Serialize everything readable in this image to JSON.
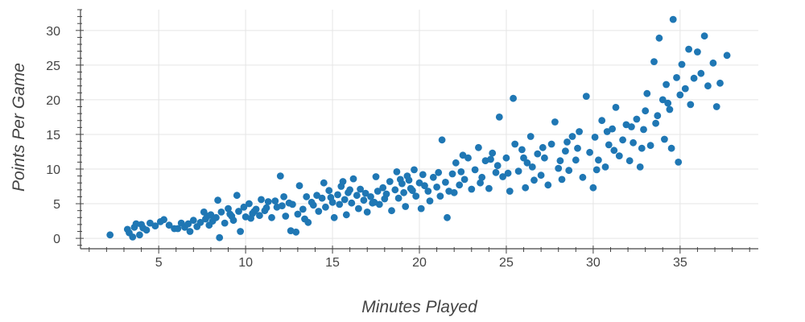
{
  "chart_data": {
    "type": "scatter",
    "title": "",
    "xlabel": "Minutes Played",
    "ylabel": "Points Per Game",
    "xlim": [
      0.5,
      39.5
    ],
    "ylim": [
      -1.5,
      33
    ],
    "xticks": [
      5,
      10,
      15,
      20,
      25,
      30,
      35
    ],
    "yticks": [
      0,
      5,
      10,
      15,
      20,
      25,
      30
    ],
    "grid": true,
    "legend": "none",
    "colors": {
      "marker": "#1f77b4",
      "grid": "#e5e5e5",
      "axis": "#444444"
    },
    "series": [
      {
        "points": [
          [
            2.2,
            0.5
          ],
          [
            3.2,
            1.3
          ],
          [
            3.3,
            0.8
          ],
          [
            3.5,
            0.2
          ],
          [
            3.6,
            1.6
          ],
          [
            3.7,
            2.1
          ],
          [
            3.9,
            0.5
          ],
          [
            4.1,
            1.5
          ],
          [
            4.3,
            1.2
          ],
          [
            4.5,
            2.2
          ],
          [
            4.8,
            1.8
          ],
          [
            5.1,
            2.4
          ],
          [
            5.3,
            2.7
          ],
          [
            5.6,
            1.9
          ],
          [
            5.9,
            1.4
          ],
          [
            6.3,
            2.2
          ],
          [
            6.5,
            1.6
          ],
          [
            6.7,
            2.1
          ],
          [
            6.8,
            1.0
          ],
          [
            7.0,
            2.6
          ],
          [
            7.2,
            1.7
          ],
          [
            7.4,
            2.3
          ],
          [
            7.6,
            3.8
          ],
          [
            7.7,
            2.8
          ],
          [
            7.9,
            1.9
          ],
          [
            8.0,
            3.4
          ],
          [
            8.1,
            2.5
          ],
          [
            8.3,
            3.0
          ],
          [
            8.4,
            5.5
          ],
          [
            8.5,
            0.1
          ],
          [
            8.6,
            3.8
          ],
          [
            8.8,
            2.2
          ],
          [
            9.0,
            4.3
          ],
          [
            9.1,
            3.5
          ],
          [
            9.3,
            2.6
          ],
          [
            9.5,
            6.2
          ],
          [
            9.6,
            3.9
          ],
          [
            9.7,
            1.0
          ],
          [
            9.9,
            4.5
          ],
          [
            10.0,
            3.1
          ],
          [
            10.2,
            5.0
          ],
          [
            10.3,
            2.9
          ],
          [
            10.4,
            3.6
          ],
          [
            10.6,
            4.2
          ],
          [
            10.8,
            3.3
          ],
          [
            10.9,
            5.6
          ],
          [
            11.1,
            4.0
          ],
          [
            11.3,
            5.3
          ],
          [
            11.5,
            3.0
          ],
          [
            11.7,
            5.4
          ],
          [
            11.8,
            4.5
          ],
          [
            12.0,
            9.0
          ],
          [
            12.1,
            4.7
          ],
          [
            12.3,
            3.2
          ],
          [
            12.5,
            5.1
          ],
          [
            12.6,
            1.1
          ],
          [
            12.7,
            4.9
          ],
          [
            12.9,
            0.9
          ],
          [
            13.0,
            3.5
          ],
          [
            13.1,
            7.6
          ],
          [
            13.3,
            4.2
          ],
          [
            13.5,
            6.0
          ],
          [
            13.6,
            2.3
          ],
          [
            13.8,
            5.2
          ],
          [
            13.9,
            4.8
          ],
          [
            14.1,
            6.2
          ],
          [
            14.2,
            3.9
          ],
          [
            14.4,
            5.8
          ],
          [
            14.5,
            8.0
          ],
          [
            14.6,
            4.5
          ],
          [
            14.8,
            6.9
          ],
          [
            15.0,
            5.2
          ],
          [
            15.1,
            3.0
          ],
          [
            15.3,
            6.3
          ],
          [
            15.4,
            4.9
          ],
          [
            15.5,
            7.5
          ],
          [
            15.7,
            5.6
          ],
          [
            15.8,
            3.4
          ],
          [
            15.9,
            6.6
          ],
          [
            16.1,
            5.1
          ],
          [
            16.2,
            8.6
          ],
          [
            16.4,
            6.2
          ],
          [
            16.5,
            4.3
          ],
          [
            16.6,
            7.1
          ],
          [
            16.8,
            5.5
          ],
          [
            16.9,
            6.5
          ],
          [
            17.0,
            3.8
          ],
          [
            17.2,
            6.0
          ],
          [
            17.3,
            5.1
          ],
          [
            17.5,
            8.9
          ],
          [
            17.6,
            6.8
          ],
          [
            17.7,
            4.9
          ],
          [
            17.9,
            7.3
          ],
          [
            18.0,
            5.7
          ],
          [
            18.1,
            6.4
          ],
          [
            18.3,
            8.2
          ],
          [
            18.4,
            4.0
          ],
          [
            18.6,
            7.0
          ],
          [
            18.7,
            9.6
          ],
          [
            18.8,
            5.8
          ],
          [
            19.0,
            7.9
          ],
          [
            19.1,
            6.6
          ],
          [
            19.2,
            4.6
          ],
          [
            19.4,
            8.4
          ],
          [
            19.5,
            7.2
          ],
          [
            19.7,
            9.9
          ],
          [
            19.8,
            6.1
          ],
          [
            20.0,
            8.0
          ],
          [
            20.1,
            4.3
          ],
          [
            20.3,
            7.6
          ],
          [
            20.5,
            6.8
          ],
          [
            20.6,
            5.4
          ],
          [
            20.8,
            8.8
          ],
          [
            21.0,
            7.4
          ],
          [
            21.1,
            9.5
          ],
          [
            21.3,
            14.2
          ],
          [
            21.5,
            8.1
          ],
          [
            21.6,
            3.0
          ],
          [
            21.7,
            6.8
          ],
          [
            21.9,
            9.3
          ],
          [
            22.1,
            10.9
          ],
          [
            22.3,
            7.7
          ],
          [
            22.5,
            12.0
          ],
          [
            22.6,
            8.5
          ],
          [
            22.8,
            11.6
          ],
          [
            23.0,
            7.1
          ],
          [
            23.2,
            9.9
          ],
          [
            23.4,
            13.1
          ],
          [
            23.6,
            8.8
          ],
          [
            23.8,
            11.2
          ],
          [
            24.0,
            7.2
          ],
          [
            24.2,
            12.3
          ],
          [
            24.4,
            9.5
          ],
          [
            24.6,
            17.5
          ],
          [
            24.8,
            8.9
          ],
          [
            25.0,
            11.6
          ],
          [
            25.2,
            6.8
          ],
          [
            25.4,
            20.2
          ],
          [
            25.5,
            13.6
          ],
          [
            25.7,
            9.7
          ],
          [
            25.9,
            12.8
          ],
          [
            26.1,
            7.3
          ],
          [
            26.2,
            10.9
          ],
          [
            26.4,
            14.7
          ],
          [
            26.6,
            8.4
          ],
          [
            26.8,
            12.2
          ],
          [
            27.0,
            9.1
          ],
          [
            27.2,
            11.6
          ],
          [
            27.4,
            7.7
          ],
          [
            27.6,
            13.6
          ],
          [
            27.8,
            16.8
          ],
          [
            28.0,
            10.1
          ],
          [
            28.2,
            8.5
          ],
          [
            28.4,
            12.6
          ],
          [
            28.6,
            9.8
          ],
          [
            28.8,
            14.7
          ],
          [
            29.0,
            11.3
          ],
          [
            29.2,
            15.4
          ],
          [
            29.4,
            8.8
          ],
          [
            29.6,
            20.5
          ],
          [
            29.8,
            12.4
          ],
          [
            30.0,
            7.3
          ],
          [
            30.1,
            14.6
          ],
          [
            30.3,
            11.3
          ],
          [
            30.5,
            17.0
          ],
          [
            30.7,
            10.3
          ],
          [
            30.9,
            13.5
          ],
          [
            31.1,
            15.8
          ],
          [
            31.3,
            18.9
          ],
          [
            31.5,
            11.9
          ],
          [
            31.7,
            14.2
          ],
          [
            31.9,
            16.4
          ],
          [
            32.1,
            11.2
          ],
          [
            32.3,
            13.8
          ],
          [
            32.5,
            17.2
          ],
          [
            32.7,
            10.3
          ],
          [
            32.9,
            15.7
          ],
          [
            33.1,
            20.9
          ],
          [
            33.3,
            13.4
          ],
          [
            33.5,
            25.5
          ],
          [
            33.7,
            17.7
          ],
          [
            33.8,
            28.9
          ],
          [
            34.0,
            20.0
          ],
          [
            34.1,
            14.3
          ],
          [
            34.2,
            22.2
          ],
          [
            34.4,
            18.6
          ],
          [
            34.5,
            13.0
          ],
          [
            34.6,
            31.6
          ],
          [
            34.8,
            23.2
          ],
          [
            34.9,
            11.0
          ],
          [
            35.1,
            25.1
          ],
          [
            35.3,
            21.6
          ],
          [
            35.5,
            27.3
          ],
          [
            35.6,
            19.3
          ],
          [
            35.8,
            23.1
          ],
          [
            36.0,
            26.9
          ],
          [
            36.2,
            23.8
          ],
          [
            36.4,
            29.2
          ],
          [
            36.6,
            22.0
          ],
          [
            36.9,
            25.3
          ],
          [
            37.1,
            19.0
          ],
          [
            37.3,
            22.4
          ],
          [
            37.7,
            26.4
          ],
          [
            4.0,
            2.0
          ],
          [
            6.1,
            1.4
          ],
          [
            7.8,
            3.2
          ],
          [
            10.5,
            3.9
          ],
          [
            11.2,
            4.4
          ],
          [
            13.4,
            2.8
          ],
          [
            14.9,
            5.9
          ],
          [
            16.0,
            7.0
          ],
          [
            17.4,
            5.2
          ],
          [
            18.9,
            8.5
          ],
          [
            19.6,
            6.9
          ],
          [
            20.2,
            9.2
          ],
          [
            21.2,
            6.1
          ],
          [
            22.4,
            9.6
          ],
          [
            23.5,
            8.0
          ],
          [
            24.5,
            10.5
          ],
          [
            25.1,
            9.4
          ],
          [
            26.0,
            11.6
          ],
          [
            27.1,
            13.1
          ],
          [
            28.1,
            11.2
          ],
          [
            29.1,
            13.0
          ],
          [
            30.2,
            9.9
          ],
          [
            31.2,
            12.7
          ],
          [
            32.2,
            16.1
          ],
          [
            33.0,
            18.4
          ],
          [
            33.6,
            16.6
          ],
          [
            34.3,
            19.5
          ],
          [
            35.0,
            20.7
          ],
          [
            9.2,
            3.2
          ],
          [
            12.2,
            6.0
          ],
          [
            15.6,
            8.2
          ],
          [
            19.3,
            9.0
          ],
          [
            22.0,
            6.6
          ],
          [
            24.1,
            11.4
          ],
          [
            26.5,
            10.3
          ],
          [
            28.5,
            13.9
          ],
          [
            30.8,
            15.4
          ],
          [
            32.8,
            13.0
          ]
        ]
      }
    ]
  }
}
